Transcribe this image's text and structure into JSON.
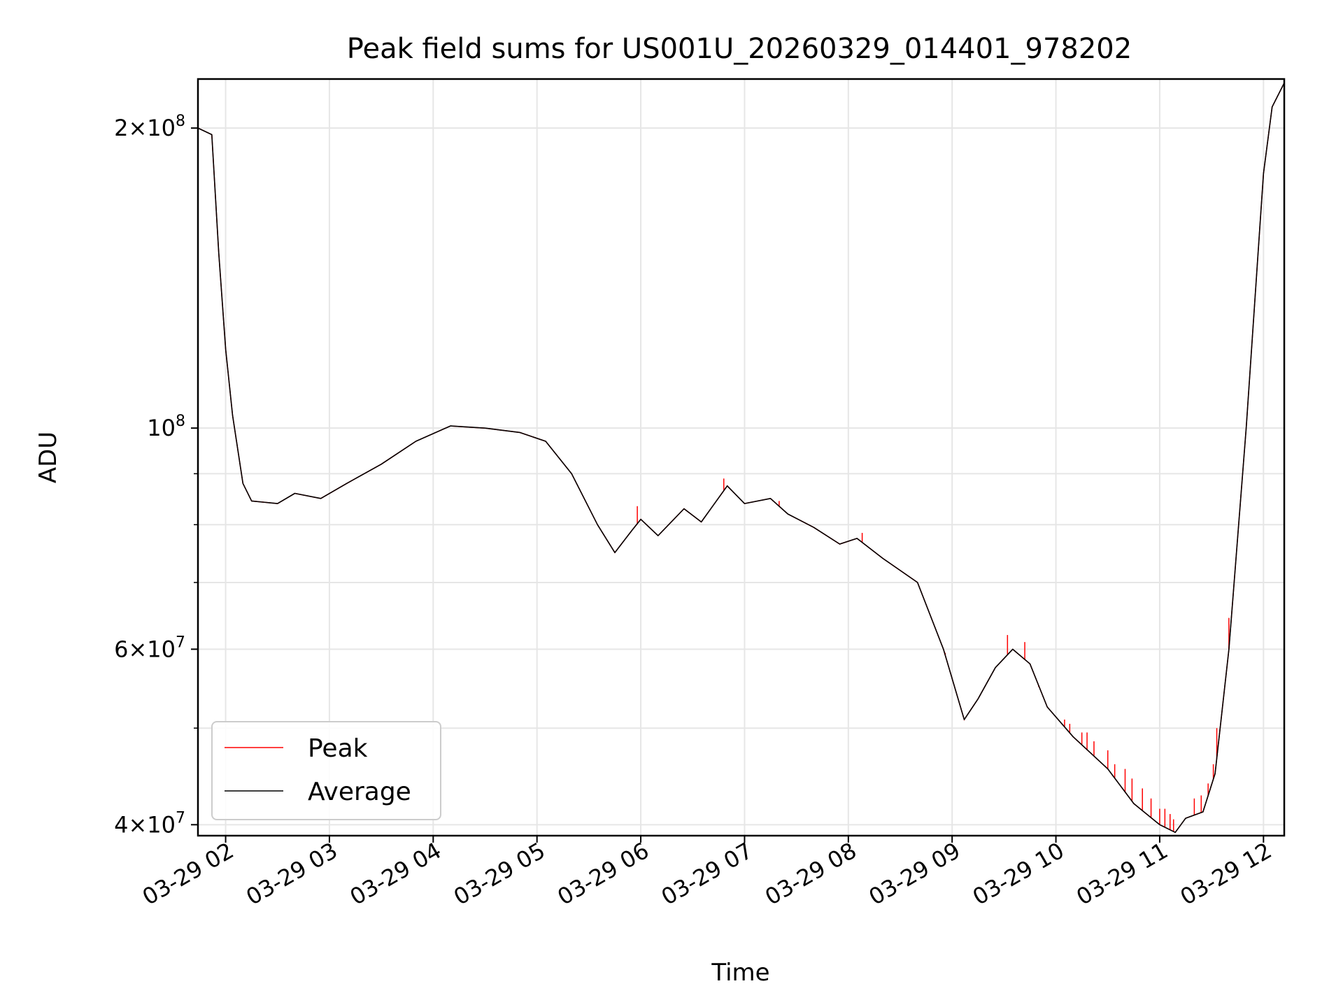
{
  "chart_data": {
    "type": "line",
    "title": "Peak field sums for US001U_20260329_014401_978202",
    "xlabel": "Time",
    "ylabel": "ADU",
    "yscale": "log",
    "grid": true,
    "legend": "lower-left",
    "xlim": [
      "2026-03-29 01:44",
      "2026-03-29 12:12"
    ],
    "ylim": [
      39000000,
      224000000
    ],
    "x_ticks": [
      {
        "t": "2026-03-29 02:00",
        "label": "03-29 02"
      },
      {
        "t": "2026-03-29 03:00",
        "label": "03-29 03"
      },
      {
        "t": "2026-03-29 04:00",
        "label": "03-29 04"
      },
      {
        "t": "2026-03-29 05:00",
        "label": "03-29 05"
      },
      {
        "t": "2026-03-29 06:00",
        "label": "03-29 06"
      },
      {
        "t": "2026-03-29 07:00",
        "label": "03-29 07"
      },
      {
        "t": "2026-03-29 08:00",
        "label": "03-29 08"
      },
      {
        "t": "2026-03-29 09:00",
        "label": "03-29 09"
      },
      {
        "t": "2026-03-29 10:00",
        "label": "03-29 10"
      },
      {
        "t": "2026-03-29 11:00",
        "label": "03-29 11"
      },
      {
        "t": "2026-03-29 12:00",
        "label": "03-29 12"
      }
    ],
    "y_ticks_major": [
      {
        "value": 40000000,
        "mantissa": "4",
        "exponent": "7"
      },
      {
        "value": 60000000,
        "mantissa": "6",
        "exponent": "7"
      },
      {
        "value": 100000000,
        "mantissa": "",
        "exponent": "8"
      },
      {
        "value": 200000000,
        "mantissa": "2",
        "exponent": "8"
      }
    ],
    "y_ticks_minor": [
      50000000,
      70000000,
      80000000,
      90000000
    ],
    "series": [
      {
        "name": "Peak",
        "color": "#ff0000"
      },
      {
        "name": "Average",
        "color": "#000000"
      }
    ],
    "average": [
      [
        "2026-03-29 01:44",
        200000000
      ],
      [
        "2026-03-29 01:52",
        197000000
      ],
      [
        "2026-03-29 01:56",
        150000000
      ],
      [
        "2026-03-29 02:00",
        120000000
      ],
      [
        "2026-03-29 02:04",
        103000000
      ],
      [
        "2026-03-29 02:10",
        88000000
      ],
      [
        "2026-03-29 02:15",
        84500000
      ],
      [
        "2026-03-29 02:30",
        84000000
      ],
      [
        "2026-03-29 02:40",
        86000000
      ],
      [
        "2026-03-29 02:55",
        85000000
      ],
      [
        "2026-03-29 03:10",
        88000000
      ],
      [
        "2026-03-29 03:30",
        92000000
      ],
      [
        "2026-03-29 03:50",
        97000000
      ],
      [
        "2026-03-29 04:10",
        100500000
      ],
      [
        "2026-03-29 04:30",
        100000000
      ],
      [
        "2026-03-29 04:50",
        99000000
      ],
      [
        "2026-03-29 05:05",
        97000000
      ],
      [
        "2026-03-29 05:20",
        90000000
      ],
      [
        "2026-03-29 05:35",
        80000000
      ],
      [
        "2026-03-29 05:45",
        75000000
      ],
      [
        "2026-03-29 05:55",
        79000000
      ],
      [
        "2026-03-29 06:00",
        81000000
      ],
      [
        "2026-03-29 06:10",
        78000000
      ],
      [
        "2026-03-29 06:25",
        83000000
      ],
      [
        "2026-03-29 06:35",
        80500000
      ],
      [
        "2026-03-29 06:50",
        87500000
      ],
      [
        "2026-03-29 07:00",
        84000000
      ],
      [
        "2026-03-29 07:15",
        85000000
      ],
      [
        "2026-03-29 07:25",
        82000000
      ],
      [
        "2026-03-29 07:40",
        79500000
      ],
      [
        "2026-03-29 07:55",
        76500000
      ],
      [
        "2026-03-29 08:05",
        77500000
      ],
      [
        "2026-03-29 08:20",
        74000000
      ],
      [
        "2026-03-29 08:40",
        70000000
      ],
      [
        "2026-03-29 08:55",
        60000000
      ],
      [
        "2026-03-29 09:07",
        51000000
      ],
      [
        "2026-03-29 09:15",
        53500000
      ],
      [
        "2026-03-29 09:25",
        57500000
      ],
      [
        "2026-03-29 09:35",
        60000000
      ],
      [
        "2026-03-29 09:45",
        58000000
      ],
      [
        "2026-03-29 09:55",
        52500000
      ],
      [
        "2026-03-29 10:10",
        49000000
      ],
      [
        "2026-03-29 10:30",
        45500000
      ],
      [
        "2026-03-29 10:45",
        42000000
      ],
      [
        "2026-03-29 11:00",
        40000000
      ],
      [
        "2026-03-29 11:09",
        39300000
      ],
      [
        "2026-03-29 11:15",
        40600000
      ],
      [
        "2026-03-29 11:25",
        41200000
      ],
      [
        "2026-03-29 11:32",
        45000000
      ],
      [
        "2026-03-29 11:40",
        60000000
      ],
      [
        "2026-03-29 11:50",
        100000000
      ],
      [
        "2026-03-29 12:00",
        180000000
      ],
      [
        "2026-03-29 12:05",
        210000000
      ],
      [
        "2026-03-29 12:12",
        222000000
      ]
    ],
    "peak_spikes": [
      [
        "2026-03-29 05:58",
        83500000
      ],
      [
        "2026-03-29 06:48",
        89000000
      ],
      [
        "2026-03-29 07:20",
        84500000
      ],
      [
        "2026-03-29 08:08",
        78500000
      ],
      [
        "2026-03-29 08:56",
        59500000
      ],
      [
        "2026-03-29 09:32",
        62000000
      ],
      [
        "2026-03-29 09:42",
        61000000
      ],
      [
        "2026-03-29 09:50",
        55000000
      ],
      [
        "2026-03-29 10:05",
        51000000
      ],
      [
        "2026-03-29 10:08",
        50500000
      ],
      [
        "2026-03-29 10:15",
        49500000
      ],
      [
        "2026-03-29 10:18",
        49500000
      ],
      [
        "2026-03-29 10:22",
        48500000
      ],
      [
        "2026-03-29 10:30",
        47500000
      ],
      [
        "2026-03-29 10:34",
        46000000
      ],
      [
        "2026-03-29 10:40",
        45500000
      ],
      [
        "2026-03-29 10:44",
        44500000
      ],
      [
        "2026-03-29 10:50",
        43500000
      ],
      [
        "2026-03-29 10:55",
        42500000
      ],
      [
        "2026-03-29 11:00",
        41500000
      ],
      [
        "2026-03-29 11:03",
        41500000
      ],
      [
        "2026-03-29 11:06",
        41000000
      ],
      [
        "2026-03-29 11:08",
        40500000
      ],
      [
        "2026-03-29 11:20",
        42500000
      ],
      [
        "2026-03-29 11:24",
        42800000
      ],
      [
        "2026-03-29 11:28",
        44000000
      ],
      [
        "2026-03-29 11:31",
        46000000
      ],
      [
        "2026-03-29 11:33",
        50000000
      ],
      [
        "2026-03-29 11:40",
        64500000
      ]
    ]
  }
}
